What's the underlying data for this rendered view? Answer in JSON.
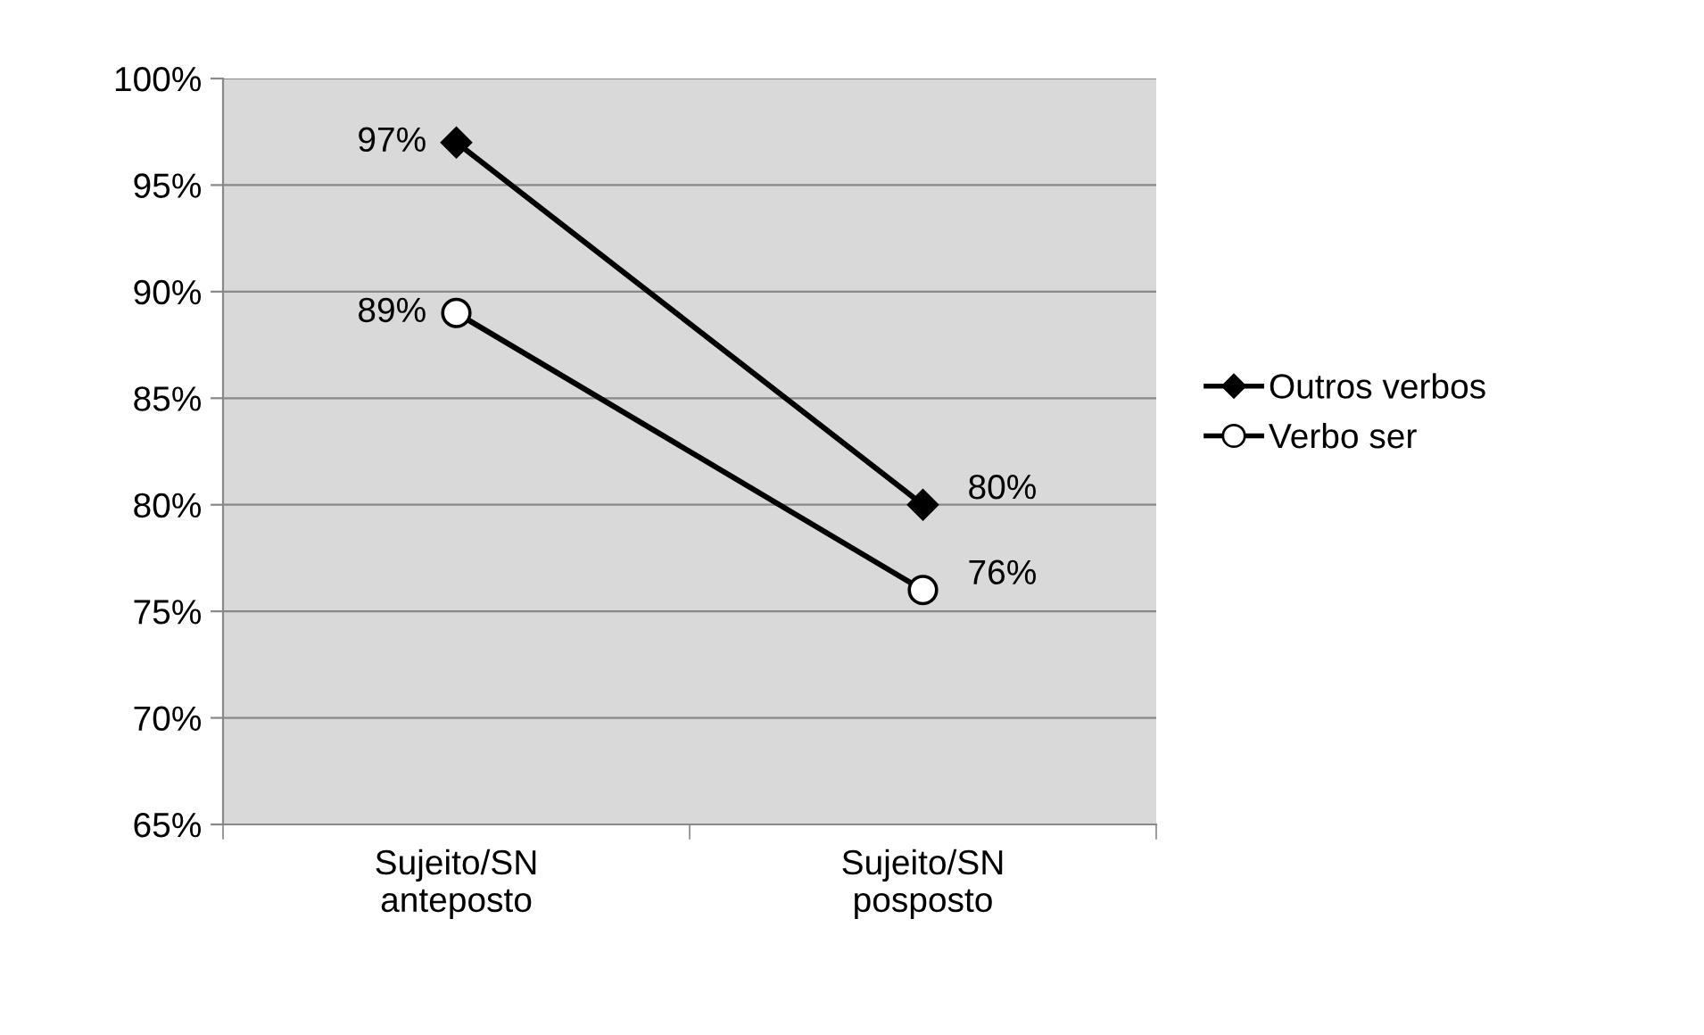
{
  "chart_data": {
    "type": "line",
    "categories": [
      "Sujeito/SN\nanteposto",
      "Sujeito/SN\nposposto"
    ],
    "series": [
      {
        "name": "Outros verbos",
        "color": "#000000",
        "marker": "diamond",
        "values": [
          97,
          80
        ],
        "value_labels": [
          "97%",
          "80%"
        ]
      },
      {
        "name": "Verbo ser",
        "color": "#000000",
        "marker": "circle",
        "values": [
          89,
          76
        ],
        "value_labels": [
          "89%",
          "76%"
        ]
      }
    ],
    "ylim": [
      65,
      100
    ],
    "yticks": [
      {
        "value": 65,
        "label": "65%"
      },
      {
        "value": 70,
        "label": "70%"
      },
      {
        "value": 75,
        "label": "75%"
      },
      {
        "value": 80,
        "label": "80%"
      },
      {
        "value": 85,
        "label": "85%"
      },
      {
        "value": 90,
        "label": "90%"
      },
      {
        "value": 95,
        "label": "95%"
      },
      {
        "value": 100,
        "label": "100%"
      }
    ],
    "grid": "y",
    "legend": "right",
    "line_style": "solid"
  }
}
